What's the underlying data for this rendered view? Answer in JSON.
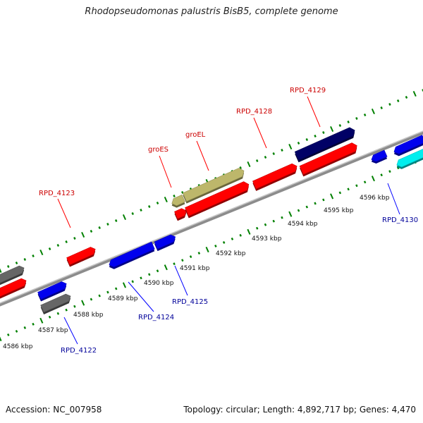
{
  "title": "Rhodopseudomonas palustris BisB5, complete genome",
  "footer": {
    "accession": "Accession: NC_007958",
    "summary": "Topology: circular; Length: 4,892,717 bp; Genes: 4,470"
  },
  "colors": {
    "forward_label": "#cc0000",
    "reverse_label": "#000099",
    "red": "#ff0000",
    "blue": "#0000ee",
    "gray": "#666666",
    "khaki": "#bdb76b",
    "navy": "#000066",
    "cyan": "#00eeee",
    "tick": "#008000",
    "backbone": "#8c8c8c"
  },
  "kbp_labels": [
    "4586 kbp",
    "4587 kbp",
    "4588 kbp",
    "4589 kbp",
    "4590 kbp",
    "4591 kbp",
    "4592 kbp",
    "4593 kbp",
    "4594 kbp",
    "4595 kbp",
    "4596 kbp"
  ],
  "gene_labels": [
    {
      "id": "RPD_4122",
      "text": "RPD_4122",
      "strand": "reverse"
    },
    {
      "id": "RPD_4123",
      "text": "RPD_4123",
      "strand": "forward"
    },
    {
      "id": "RPD_4124",
      "text": "RPD_4124",
      "strand": "reverse"
    },
    {
      "id": "RPD_4125",
      "text": "RPD_4125",
      "strand": "reverse"
    },
    {
      "id": "groES",
      "text": "groES",
      "strand": "forward"
    },
    {
      "id": "groEL",
      "text": "groEL",
      "strand": "forward"
    },
    {
      "id": "RPD_4128",
      "text": "RPD_4128",
      "strand": "forward"
    },
    {
      "id": "RPD_4129",
      "text": "RPD_4129",
      "strand": "forward"
    },
    {
      "id": "RPD_4130",
      "text": "RPD_4130",
      "strand": "reverse"
    }
  ]
}
